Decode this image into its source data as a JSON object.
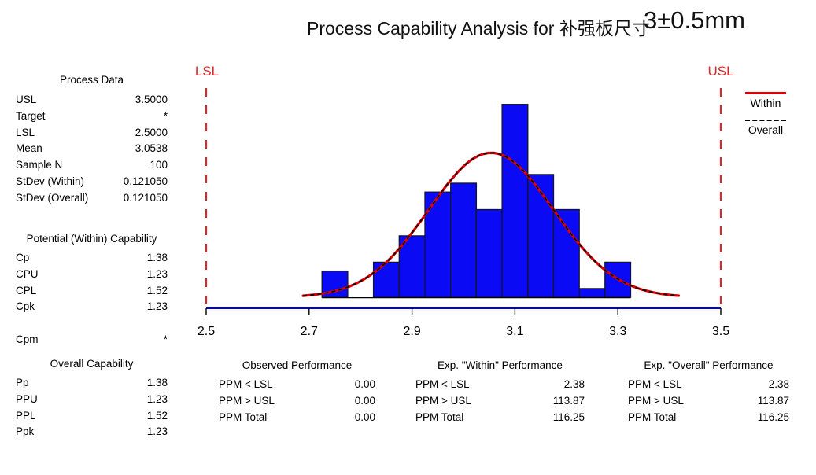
{
  "title": {
    "main": "Process Capability Analysis for 补强板尺寸",
    "spec": "3±0.5mm"
  },
  "colors": {
    "bar_fill": "#0A0AF5",
    "bar_stroke": "#14142A",
    "histogram_baseline": "#000000",
    "axis_line": "#0000D8",
    "spec_limit_red": "#D42A2A",
    "curve_within_red": "#DD0000",
    "curve_overall_black": "#000000",
    "text": "#000000"
  },
  "panels": {
    "process_data": {
      "title": "Process Data",
      "rows": [
        {
          "label": "USL",
          "value": "3.5000"
        },
        {
          "label": "Target",
          "value": "*"
        },
        {
          "label": "LSL",
          "value": "2.5000"
        },
        {
          "label": "Mean",
          "value": "3.0538"
        },
        {
          "label": "Sample N",
          "value": "100"
        },
        {
          "label": "StDev (Within)",
          "value": "0.121050"
        },
        {
          "label": "StDev (Overall)",
          "value": "0.121050"
        }
      ]
    },
    "within_capability": {
      "title": "Potential (Within) Capability",
      "rows": [
        {
          "label": "Cp",
          "value": "1.38"
        },
        {
          "label": "CPU",
          "value": "1.23"
        },
        {
          "label": "CPL",
          "value": "1.52"
        },
        {
          "label": "Cpk",
          "value": "1.23"
        },
        {
          "label": "",
          "value": ""
        },
        {
          "label": "Cpm",
          "value": "*"
        }
      ]
    },
    "overall_capability": {
      "title": "Overall Capability",
      "rows": [
        {
          "label": "Pp",
          "value": "1.38"
        },
        {
          "label": "PPU",
          "value": "1.23"
        },
        {
          "label": "PPL",
          "value": "1.52"
        },
        {
          "label": "Ppk",
          "value": "1.23"
        }
      ]
    },
    "observed_performance": {
      "title": "Observed Performance",
      "rows": [
        {
          "label": "PPM < LSL",
          "value": "0.00"
        },
        {
          "label": "PPM > USL",
          "value": "0.00"
        },
        {
          "label": "PPM Total",
          "value": "0.00"
        }
      ]
    },
    "exp_within_performance": {
      "title": "Exp. \"Within\" Performance",
      "rows": [
        {
          "label": "PPM < LSL",
          "value": "2.38"
        },
        {
          "label": "PPM > USL",
          "value": "113.87"
        },
        {
          "label": "PPM Total",
          "value": "116.25"
        }
      ]
    },
    "exp_overall_performance": {
      "title": "Exp. \"Overall\" Performance",
      "rows": [
        {
          "label": "PPM < LSL",
          "value": "2.38"
        },
        {
          "label": "PPM > USL",
          "value": "113.87"
        },
        {
          "label": "PPM Total",
          "value": "116.25"
        }
      ]
    }
  },
  "chart_data": {
    "type": "bar",
    "subtype": "capability-histogram-with-normal-curves",
    "title": "Process Capability Analysis for 补强板尺寸 3±0.5mm",
    "xlabel": "",
    "ylabel": "",
    "xlim": [
      2.5,
      3.5
    ],
    "x_ticks": [
      "2.5",
      "2.7",
      "2.9",
      "3.1",
      "3.3",
      "3.5"
    ],
    "x_tick_values": [
      2.5,
      2.7,
      2.9,
      3.1,
      3.3,
      3.5
    ],
    "grid": false,
    "bin_width": 0.05,
    "bin_centers": [
      2.75,
      2.8,
      2.85,
      2.9,
      2.95,
      3.0,
      3.05,
      3.1,
      3.15,
      3.2,
      3.25,
      3.3
    ],
    "counts": [
      3,
      0,
      4,
      7,
      12,
      13,
      10,
      22,
      14,
      10,
      1,
      4
    ],
    "sample_n": 100,
    "lsl": {
      "label": "LSL",
      "value": 2.5
    },
    "usl": {
      "label": "USL",
      "value": 3.5
    },
    "curves": [
      {
        "name": "Within",
        "mean": 3.0538,
        "stdev": 0.12105,
        "style": "solid",
        "color": "#DD0000"
      },
      {
        "name": "Overall",
        "mean": 3.0538,
        "stdev": 0.12105,
        "style": "dashed",
        "color": "#000000"
      }
    ],
    "legend_position": "top-right"
  }
}
